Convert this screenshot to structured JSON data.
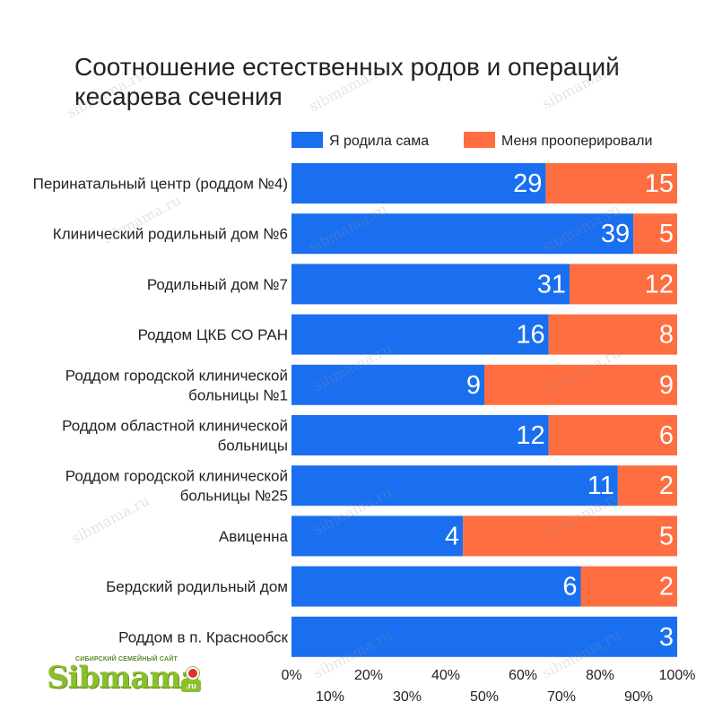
{
  "chart_data": {
    "type": "bar",
    "orientation": "horizontal",
    "stacked": "percent",
    "title": "Соотношение естественных родов и операций кесарева сечения",
    "categories": [
      [
        "Перинатальный центр (роддом №4)"
      ],
      [
        "Клинический родильный дом №6"
      ],
      [
        "Родильный дом №7"
      ],
      [
        "Роддом ЦКБ СО РАН"
      ],
      [
        "Роддом городской клинической",
        "больницы №1"
      ],
      [
        "Роддом областной клинической",
        "больницы"
      ],
      [
        "Роддом городской клинической",
        "больницы №25"
      ],
      [
        "Авиценна"
      ],
      [
        "Бердский родильный дом"
      ],
      [
        "Роддом в п. Краснообск"
      ]
    ],
    "series": [
      {
        "name": "Я родила сама",
        "color": "#1a6ff0",
        "values": [
          29,
          39,
          31,
          16,
          9,
          12,
          11,
          4,
          6,
          3
        ]
      },
      {
        "name": "Меня прооперировали",
        "color": "#ff6e40",
        "values": [
          15,
          5,
          12,
          8,
          9,
          6,
          2,
          5,
          2,
          0
        ]
      }
    ],
    "xlim": [
      0,
      100
    ],
    "x_ticks_upper": [
      "0%",
      "20%",
      "40%",
      "60%",
      "80%",
      "100%"
    ],
    "x_ticks_lower": [
      "10%",
      "30%",
      "50%",
      "70%",
      "90%"
    ],
    "legend": "top-right",
    "grid": false
  },
  "logo": {
    "word": "Sibmama",
    "tagline": "СИБИРСКИЙ СЕМЕЙНЫЙ САЙТ",
    "domain": ".ru"
  },
  "watermark": "sibmama.ru"
}
